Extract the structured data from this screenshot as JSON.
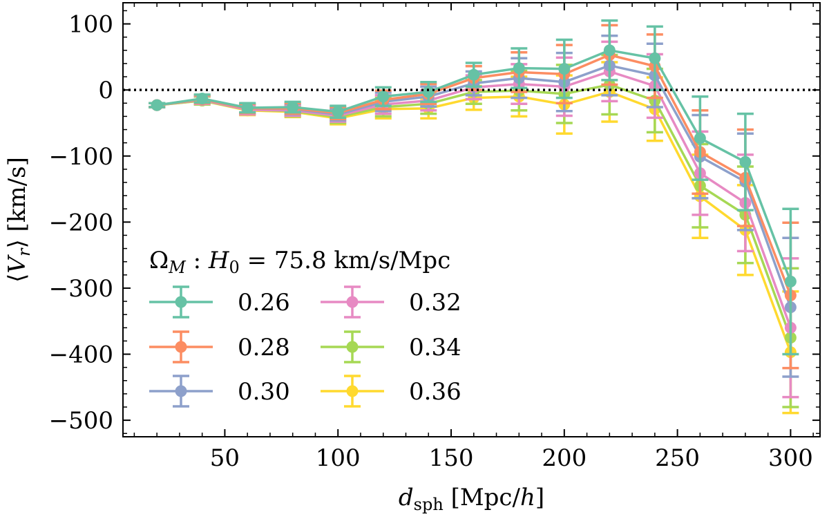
{
  "chart_data": {
    "type": "line",
    "xlabel": "d_sph [Mpc/h]",
    "ylabel": "⟨V_r⟩ [km/s]",
    "xlim": [
      5,
      313
    ],
    "ylim": [
      -525,
      132
    ],
    "xticks": [
      50,
      100,
      150,
      200,
      250,
      300
    ],
    "yticks": [
      100,
      0,
      -100,
      -200,
      -300,
      -400,
      -500
    ],
    "xtick_labels": [
      "50",
      "100",
      "150",
      "200",
      "250",
      "300"
    ],
    "ytick_labels": [
      "100",
      "0",
      "−100",
      "−200",
      "−300",
      "−400",
      "−500"
    ],
    "reference_line": {
      "y": 0,
      "style": "dotted"
    },
    "grid": false,
    "legend": {
      "title": "Ω_M : H_0 = 75.8 km/s/Mpc",
      "placement": "lower-left",
      "columns": 2
    },
    "x": [
      20,
      40,
      60,
      80,
      100,
      120,
      140,
      160,
      180,
      200,
      220,
      240,
      260,
      280,
      300
    ],
    "series": [
      {
        "name": "0.26",
        "color": "#66c2a5",
        "values": [
          -23,
          -13,
          -27,
          -26,
          -33,
          -10,
          -3,
          23,
          33,
          32,
          60,
          48,
          -73,
          -109,
          -290
        ],
        "errors": [
          3,
          6,
          7,
          8,
          9,
          14,
          15,
          18,
          30,
          44,
          45,
          48,
          63,
          73,
          110
        ]
      },
      {
        "name": "0.28",
        "color": "#fc8d62",
        "values": [
          -23,
          -14,
          -28,
          -28,
          -35,
          -15,
          -6,
          18,
          27,
          24,
          53,
          36,
          -94,
          -133,
          -311
        ],
        "errors": [
          3,
          6,
          7,
          8,
          9,
          14,
          15,
          18,
          30,
          44,
          45,
          48,
          63,
          73,
          110
        ]
      },
      {
        "name": "0.30",
        "color": "#8da0cb",
        "values": [
          -23,
          -14,
          -28,
          -29,
          -37,
          -18,
          -10,
          10,
          18,
          12,
          37,
          22,
          -101,
          -139,
          -329
        ],
        "errors": [
          3,
          6,
          7,
          8,
          9,
          14,
          15,
          18,
          30,
          44,
          45,
          48,
          63,
          73,
          105
        ]
      },
      {
        "name": "0.32",
        "color": "#e78ac3",
        "values": [
          -23,
          -15,
          -30,
          -31,
          -39,
          -22,
          -16,
          4,
          9,
          5,
          28,
          6,
          -126,
          -171,
          -360
        ],
        "errors": [
          3,
          6,
          7,
          8,
          9,
          14,
          15,
          18,
          30,
          44,
          45,
          48,
          63,
          73,
          105
        ]
      },
      {
        "name": "0.34",
        "color": "#a6d854",
        "values": [
          -23,
          -16,
          -30,
          -32,
          -41,
          -26,
          -21,
          -3,
          -1,
          -6,
          8,
          -16,
          -145,
          -189,
          -375
        ],
        "errors": [
          3,
          6,
          7,
          8,
          9,
          14,
          15,
          18,
          30,
          44,
          45,
          48,
          63,
          73,
          105
        ]
      },
      {
        "name": "0.36",
        "color": "#ffd92f",
        "values": [
          -23,
          -16,
          -31,
          -33,
          -43,
          -29,
          -28,
          -12,
          -10,
          -22,
          -3,
          -29,
          -161,
          -212,
          -397
        ],
        "errors": [
          3,
          6,
          7,
          8,
          9,
          14,
          15,
          18,
          30,
          44,
          45,
          48,
          63,
          68,
          92
        ]
      }
    ]
  }
}
